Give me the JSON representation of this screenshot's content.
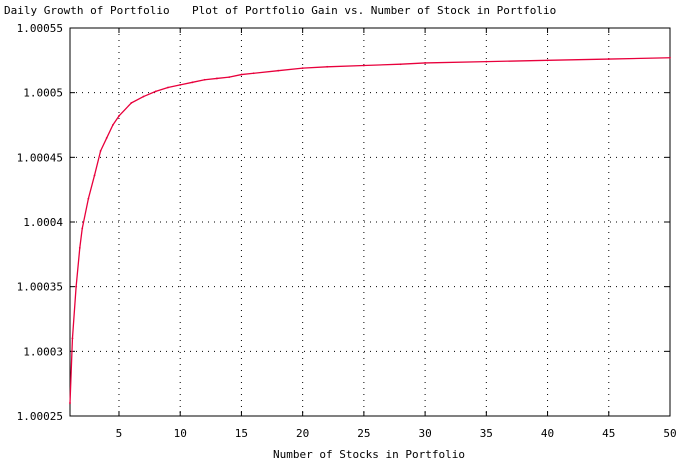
{
  "chart_data": {
    "type": "line",
    "title": "Plot of Portfolio Gain vs. Number of Stock in Portfolio",
    "ylabel": "Daily Growth of Portfolio",
    "xlabel": "Number of Stocks in Portfolio",
    "xlim": [
      1,
      50
    ],
    "ylim": [
      1.00025,
      1.00055
    ],
    "x_ticks": [
      5,
      10,
      15,
      20,
      25,
      30,
      35,
      40,
      45,
      50
    ],
    "y_ticks": [
      1.00025,
      1.0003,
      1.00035,
      1.0004,
      1.00045,
      1.0005,
      1.00055
    ],
    "y_tick_labels": [
      "1.00025",
      "1.0003",
      "1.00035",
      "1.0004",
      "1.00045",
      "1.0005",
      "1.00055"
    ],
    "grid": true,
    "series": [
      {
        "color": "#e8003c",
        "x": [
          1,
          1.2,
          1.5,
          1.8,
          2,
          2.5,
          3,
          3.5,
          4,
          4.5,
          5,
          6,
          7,
          8,
          9,
          10,
          11,
          12,
          13,
          14,
          15,
          16,
          18,
          20,
          22,
          25,
          28,
          30,
          35,
          40,
          45,
          50
        ],
        "y": [
          1.00026,
          1.00031,
          1.00035,
          1.00038,
          1.000395,
          1.000418,
          1.000436,
          1.000455,
          1.000465,
          1.000475,
          1.000482,
          1.000492,
          1.000497,
          1.000501,
          1.000504,
          1.000506,
          1.000508,
          1.00051,
          1.000511,
          1.000512,
          1.000514,
          1.000515,
          1.000517,
          1.000519,
          1.00052,
          1.000521,
          1.000522,
          1.000523,
          1.000524,
          1.000525,
          1.000526,
          1.000527
        ]
      }
    ]
  }
}
